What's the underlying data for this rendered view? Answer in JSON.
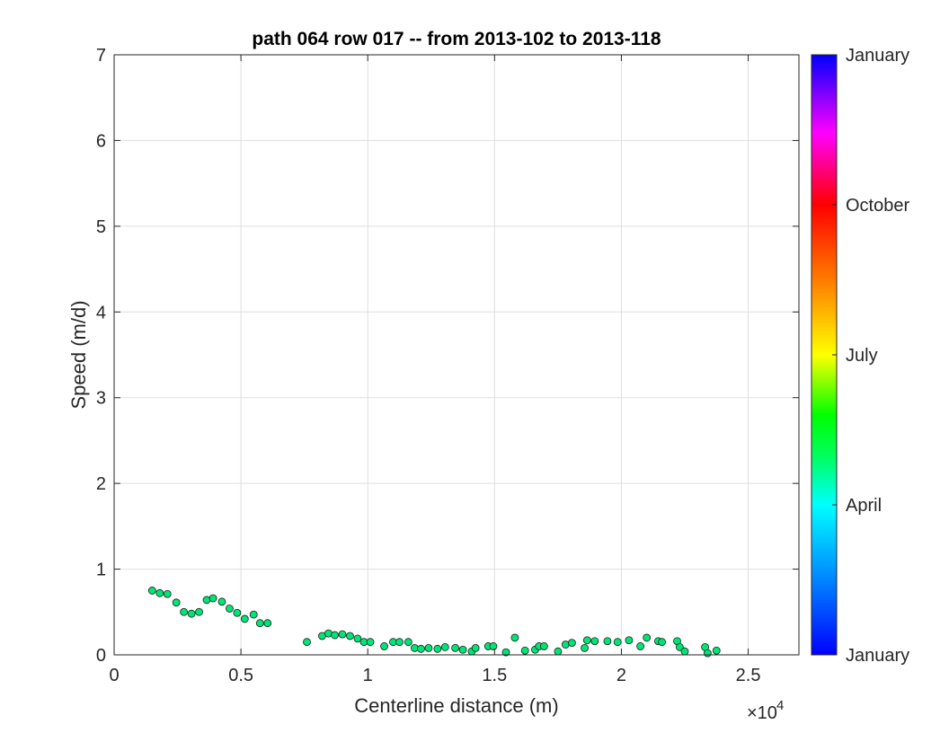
{
  "chart_data": {
    "type": "scatter",
    "title": "path 064 row 017 -- from 2013-102 to 2013-118",
    "xlabel": "Centerline distance (m)",
    "ylabel": "Speed (m/d)",
    "x_exponent_label": "×10",
    "x_exponent_power": "4",
    "xlim": [
      0,
      27000
    ],
    "ylim": [
      0,
      7
    ],
    "x_ticks": [
      0,
      5000,
      10000,
      15000,
      20000,
      25000
    ],
    "x_tick_labels": [
      "0",
      "0.5",
      "1",
      "1.5",
      "2",
      "2.5"
    ],
    "y_ticks": [
      0,
      1,
      2,
      3,
      4,
      5,
      6,
      7
    ],
    "y_tick_labels": [
      "0",
      "1",
      "2",
      "3",
      "4",
      "5",
      "6",
      "7"
    ],
    "grid": true,
    "marker_color": "#00e676",
    "marker_edge_color": "#1a1a1a",
    "series": [
      {
        "points": [
          [
            1500,
            0.75
          ],
          [
            1800,
            0.72
          ],
          [
            2100,
            0.71
          ],
          [
            2450,
            0.61
          ],
          [
            2750,
            0.5
          ],
          [
            3050,
            0.48
          ],
          [
            3350,
            0.5
          ],
          [
            3650,
            0.64
          ],
          [
            3900,
            0.66
          ],
          [
            4250,
            0.62
          ],
          [
            4550,
            0.54
          ],
          [
            4850,
            0.49
          ],
          [
            5150,
            0.42
          ],
          [
            5500,
            0.47
          ],
          [
            5750,
            0.37
          ],
          [
            6050,
            0.37
          ],
          [
            7600,
            0.15
          ],
          [
            8200,
            0.22
          ],
          [
            8450,
            0.25
          ],
          [
            8700,
            0.23
          ],
          [
            9000,
            0.24
          ],
          [
            9300,
            0.22
          ],
          [
            9600,
            0.19
          ],
          [
            9850,
            0.15
          ],
          [
            10100,
            0.15
          ],
          [
            10650,
            0.1
          ],
          [
            11000,
            0.15
          ],
          [
            11250,
            0.15
          ],
          [
            11600,
            0.15
          ],
          [
            11850,
            0.08
          ],
          [
            12100,
            0.07
          ],
          [
            12400,
            0.08
          ],
          [
            12750,
            0.07
          ],
          [
            13050,
            0.09
          ],
          [
            13450,
            0.08
          ],
          [
            13750,
            0.06
          ],
          [
            14100,
            0.04
          ],
          [
            14250,
            0.08
          ],
          [
            14750,
            0.1
          ],
          [
            14950,
            0.1
          ],
          [
            15450,
            0.03
          ],
          [
            15800,
            0.2
          ],
          [
            16200,
            0.05
          ],
          [
            16600,
            0.06
          ],
          [
            16750,
            0.1
          ],
          [
            16950,
            0.1
          ],
          [
            17500,
            0.04
          ],
          [
            17800,
            0.12
          ],
          [
            18050,
            0.14
          ],
          [
            18550,
            0.08
          ],
          [
            18650,
            0.17
          ],
          [
            18950,
            0.16
          ],
          [
            19450,
            0.16
          ],
          [
            19850,
            0.15
          ],
          [
            20300,
            0.17
          ],
          [
            20750,
            0.1
          ],
          [
            21000,
            0.2
          ],
          [
            21450,
            0.16
          ],
          [
            21600,
            0.15
          ],
          [
            22200,
            0.16
          ],
          [
            22300,
            0.09
          ],
          [
            22500,
            0.04
          ],
          [
            23300,
            0.09
          ],
          [
            23400,
            0.02
          ],
          [
            23750,
            0.05
          ]
        ]
      }
    ],
    "colorbar": {
      "labels": [
        "January",
        "October",
        "July",
        "April",
        "January"
      ],
      "label_fractions": [
        1.0,
        0.75,
        0.5,
        0.25,
        0.0
      ]
    }
  }
}
